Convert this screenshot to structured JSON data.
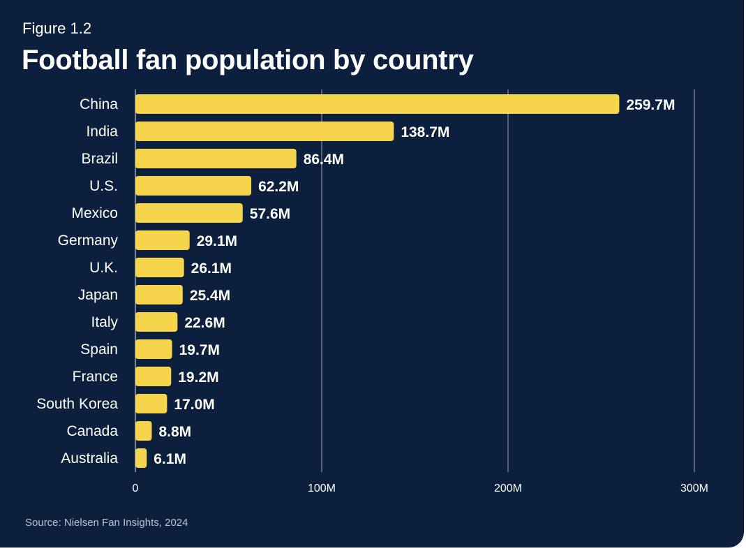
{
  "figure_label": "Figure 1.2",
  "title": "Football fan population by country",
  "source": "Source: Nielsen Fan Insights, 2024",
  "colors": {
    "background": "#0c1f3d",
    "bar": "#f6d54c",
    "text": "#ffffff",
    "grid": "#d9dee6",
    "source_text": "#b9c2d1"
  },
  "chart_data": {
    "type": "bar",
    "orientation": "horizontal",
    "title": "Football fan population by country",
    "categories": [
      "China",
      "India",
      "Brazil",
      "U.S.",
      "Mexico",
      "Germany",
      "U.K.",
      "Japan",
      "Italy",
      "Spain",
      "France",
      "South Korea",
      "Canada",
      "Australia"
    ],
    "values": [
      259.7,
      138.7,
      86.4,
      62.2,
      57.6,
      29.1,
      26.1,
      25.4,
      22.6,
      19.7,
      19.2,
      17.0,
      8.8,
      6.1
    ],
    "value_labels": [
      "259.7M",
      "138.7M",
      "86.4M",
      "62.2M",
      "57.6M",
      "29.1M",
      "26.1M",
      "25.4M",
      "22.6M",
      "19.7M",
      "19.2M",
      "17.0M",
      "8.8M",
      "6.1M"
    ],
    "xlim": [
      0,
      300
    ],
    "xticks": [
      0,
      100,
      200,
      300
    ],
    "xtick_labels": [
      "0",
      "100M",
      "200M",
      "300M"
    ],
    "unit": "M",
    "grid": true
  }
}
